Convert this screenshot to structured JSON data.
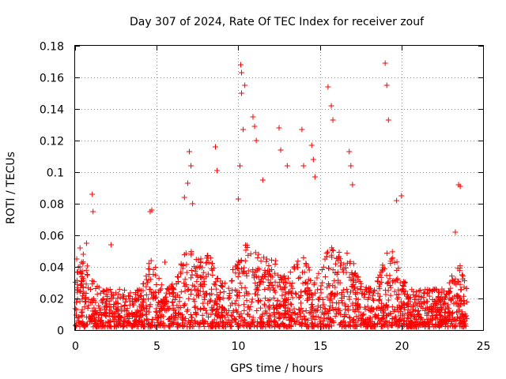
{
  "chart_data": {
    "type": "scatter",
    "title": "Day 307 of 2024, Rate Of TEC Index for receiver zouf",
    "xlabel": "GPS time / hours",
    "ylabel": "ROTI / TECUs",
    "xlim": [
      0,
      25
    ],
    "ylim": [
      0,
      0.18
    ],
    "xticks": [
      0,
      5,
      10,
      15,
      20,
      25
    ],
    "yticks": [
      0,
      0.02,
      0.04,
      0.06,
      0.08,
      0.1,
      0.12,
      0.14,
      0.16,
      0.18
    ],
    "xtick_labels": [
      "0",
      "5",
      "10",
      "15",
      "20",
      "25"
    ],
    "ytick_labels": [
      "0",
      "0.02",
      "0.04",
      "0.06",
      "0.08",
      "0.1",
      "0.12",
      "0.14",
      "0.16",
      "0.18"
    ],
    "grid": true,
    "marker": "+",
    "series": [
      {
        "name": "ROTI",
        "color": "#ff0000",
        "x": [
          0.1,
          0.3,
          0.5,
          0.7,
          1.05,
          1.1,
          2.2,
          4.6,
          4.7,
          5.5,
          6.7,
          6.9,
          7.0,
          7.1,
          7.2,
          8.6,
          8.7,
          10.0,
          10.1,
          10.15,
          10.2,
          10.2,
          10.3,
          10.4,
          10.9,
          11.0,
          11.1,
          11.5,
          12.5,
          12.6,
          13.0,
          13.9,
          14.0,
          14.5,
          14.6,
          14.7,
          15.5,
          15.7,
          15.8,
          16.8,
          16.9,
          17.0,
          19.0,
          19.1,
          19.2,
          19.7,
          20.0,
          23.3,
          23.5,
          23.6
        ],
        "y": [
          0.045,
          0.052,
          0.048,
          0.055,
          0.086,
          0.075,
          0.054,
          0.075,
          0.076,
          0.043,
          0.084,
          0.093,
          0.113,
          0.104,
          0.08,
          0.116,
          0.101,
          0.083,
          0.104,
          0.168,
          0.163,
          0.15,
          0.127,
          0.155,
          0.135,
          0.129,
          0.12,
          0.095,
          0.128,
          0.114,
          0.104,
          0.127,
          0.104,
          0.117,
          0.108,
          0.097,
          0.154,
          0.142,
          0.133,
          0.113,
          0.104,
          0.092,
          0.169,
          0.155,
          0.133,
          0.082,
          0.085,
          0.062,
          0.092,
          0.091
        ]
      }
    ],
    "baseline_band": {
      "description": "dense cluster of ROTI values across all hours",
      "x_range": [
        0,
        24
      ],
      "y_typical": [
        0.005,
        0.035
      ]
    }
  }
}
